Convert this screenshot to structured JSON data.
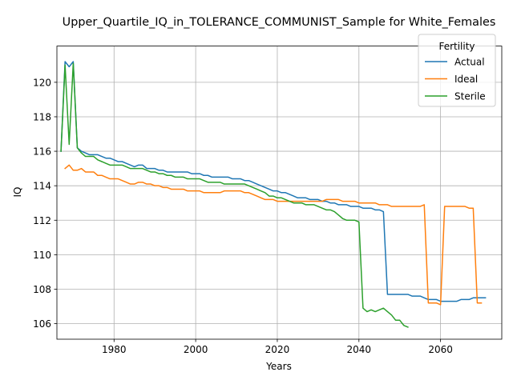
{
  "chart_data": {
    "type": "line",
    "title": "Upper_Quartile_IQ_in_TOLERANCE_COMMUNIST_Sample for White_Females",
    "xlabel": "Years",
    "ylabel": "IQ",
    "xlim": [
      1966,
      2075
    ],
    "ylim": [
      105.1,
      122.1
    ],
    "xticks": [
      1980,
      2000,
      2020,
      2040,
      2060
    ],
    "yticks": [
      106,
      108,
      110,
      112,
      114,
      116,
      118,
      120
    ],
    "grid": true,
    "legend": {
      "title": "Fertility",
      "position": "top-right"
    },
    "series": [
      {
        "name": "Actual",
        "color": "#1f77b4",
        "points": [
          [
            1967,
            116.0
          ],
          [
            1968,
            121.2
          ],
          [
            1969,
            120.9
          ],
          [
            1970,
            121.2
          ],
          [
            1971,
            116.2
          ],
          [
            1972,
            116.0
          ],
          [
            1973,
            115.9
          ],
          [
            1974,
            115.8
          ],
          [
            1975,
            115.8
          ],
          [
            1976,
            115.8
          ],
          [
            1977,
            115.7
          ],
          [
            1978,
            115.6
          ],
          [
            1979,
            115.6
          ],
          [
            1980,
            115.5
          ],
          [
            1981,
            115.4
          ],
          [
            1982,
            115.4
          ],
          [
            1983,
            115.3
          ],
          [
            1984,
            115.2
          ],
          [
            1985,
            115.1
          ],
          [
            1986,
            115.2
          ],
          [
            1987,
            115.2
          ],
          [
            1988,
            115.0
          ],
          [
            1989,
            115.0
          ],
          [
            1990,
            115.0
          ],
          [
            1991,
            114.9
          ],
          [
            1992,
            114.9
          ],
          [
            1993,
            114.8
          ],
          [
            1994,
            114.8
          ],
          [
            1995,
            114.8
          ],
          [
            1996,
            114.8
          ],
          [
            1997,
            114.8
          ],
          [
            1998,
            114.8
          ],
          [
            1999,
            114.7
          ],
          [
            2000,
            114.7
          ],
          [
            2001,
            114.7
          ],
          [
            2002,
            114.6
          ],
          [
            2003,
            114.6
          ],
          [
            2004,
            114.5
          ],
          [
            2005,
            114.5
          ],
          [
            2006,
            114.5
          ],
          [
            2007,
            114.5
          ],
          [
            2008,
            114.5
          ],
          [
            2009,
            114.4
          ],
          [
            2010,
            114.4
          ],
          [
            2011,
            114.4
          ],
          [
            2012,
            114.3
          ],
          [
            2013,
            114.3
          ],
          [
            2014,
            114.2
          ],
          [
            2015,
            114.1
          ],
          [
            2016,
            114.0
          ],
          [
            2017,
            113.9
          ],
          [
            2018,
            113.8
          ],
          [
            2019,
            113.7
          ],
          [
            2020,
            113.7
          ],
          [
            2021,
            113.6
          ],
          [
            2022,
            113.6
          ],
          [
            2023,
            113.5
          ],
          [
            2024,
            113.4
          ],
          [
            2025,
            113.3
          ],
          [
            2026,
            113.3
          ],
          [
            2027,
            113.3
          ],
          [
            2028,
            113.2
          ],
          [
            2029,
            113.2
          ],
          [
            2030,
            113.2
          ],
          [
            2031,
            113.1
          ],
          [
            2032,
            113.1
          ],
          [
            2033,
            113.0
          ],
          [
            2034,
            113.0
          ],
          [
            2035,
            112.9
          ],
          [
            2036,
            112.9
          ],
          [
            2037,
            112.9
          ],
          [
            2038,
            112.8
          ],
          [
            2039,
            112.8
          ],
          [
            2040,
            112.8
          ],
          [
            2041,
            112.7
          ],
          [
            2042,
            112.7
          ],
          [
            2043,
            112.7
          ],
          [
            2044,
            112.6
          ],
          [
            2045,
            112.6
          ],
          [
            2046,
            112.5
          ],
          [
            2047,
            107.7
          ],
          [
            2048,
            107.7
          ],
          [
            2049,
            107.7
          ],
          [
            2050,
            107.7
          ],
          [
            2051,
            107.7
          ],
          [
            2052,
            107.7
          ],
          [
            2053,
            107.6
          ],
          [
            2054,
            107.6
          ],
          [
            2055,
            107.6
          ],
          [
            2056,
            107.5
          ],
          [
            2057,
            107.4
          ],
          [
            2058,
            107.4
          ],
          [
            2059,
            107.4
          ],
          [
            2060,
            107.3
          ],
          [
            2061,
            107.3
          ],
          [
            2062,
            107.3
          ],
          [
            2063,
            107.3
          ],
          [
            2064,
            107.3
          ],
          [
            2065,
            107.4
          ],
          [
            2066,
            107.4
          ],
          [
            2067,
            107.4
          ],
          [
            2068,
            107.5
          ],
          [
            2069,
            107.5
          ],
          [
            2070,
            107.5
          ],
          [
            2071,
            107.5
          ]
        ]
      },
      {
        "name": "Ideal",
        "color": "#ff7f0e",
        "points": [
          [
            1968,
            115.0
          ],
          [
            1969,
            115.2
          ],
          [
            1970,
            114.9
          ],
          [
            1971,
            114.9
          ],
          [
            1972,
            115.0
          ],
          [
            1973,
            114.8
          ],
          [
            1974,
            114.8
          ],
          [
            1975,
            114.8
          ],
          [
            1976,
            114.6
          ],
          [
            1977,
            114.6
          ],
          [
            1978,
            114.5
          ],
          [
            1979,
            114.4
          ],
          [
            1980,
            114.4
          ],
          [
            1981,
            114.4
          ],
          [
            1982,
            114.3
          ],
          [
            1983,
            114.2
          ],
          [
            1984,
            114.1
          ],
          [
            1985,
            114.1
          ],
          [
            1986,
            114.2
          ],
          [
            1987,
            114.2
          ],
          [
            1988,
            114.1
          ],
          [
            1989,
            114.1
          ],
          [
            1990,
            114.0
          ],
          [
            1991,
            114.0
          ],
          [
            1992,
            113.9
          ],
          [
            1993,
            113.9
          ],
          [
            1994,
            113.8
          ],
          [
            1995,
            113.8
          ],
          [
            1996,
            113.8
          ],
          [
            1997,
            113.8
          ],
          [
            1998,
            113.7
          ],
          [
            1999,
            113.7
          ],
          [
            2000,
            113.7
          ],
          [
            2001,
            113.7
          ],
          [
            2002,
            113.6
          ],
          [
            2003,
            113.6
          ],
          [
            2004,
            113.6
          ],
          [
            2005,
            113.6
          ],
          [
            2006,
            113.6
          ],
          [
            2007,
            113.7
          ],
          [
            2008,
            113.7
          ],
          [
            2009,
            113.7
          ],
          [
            2010,
            113.7
          ],
          [
            2011,
            113.7
          ],
          [
            2012,
            113.6
          ],
          [
            2013,
            113.6
          ],
          [
            2014,
            113.5
          ],
          [
            2015,
            113.4
          ],
          [
            2016,
            113.3
          ],
          [
            2017,
            113.2
          ],
          [
            2018,
            113.2
          ],
          [
            2019,
            113.2
          ],
          [
            2020,
            113.1
          ],
          [
            2021,
            113.1
          ],
          [
            2022,
            113.1
          ],
          [
            2023,
            113.1
          ],
          [
            2024,
            113.1
          ],
          [
            2025,
            113.1
          ],
          [
            2026,
            113.1
          ],
          [
            2027,
            113.1
          ],
          [
            2028,
            113.1
          ],
          [
            2029,
            113.1
          ],
          [
            2030,
            113.1
          ],
          [
            2031,
            113.1
          ],
          [
            2032,
            113.2
          ],
          [
            2033,
            113.2
          ],
          [
            2034,
            113.2
          ],
          [
            2035,
            113.2
          ],
          [
            2036,
            113.1
          ],
          [
            2037,
            113.1
          ],
          [
            2038,
            113.1
          ],
          [
            2039,
            113.1
          ],
          [
            2040,
            113.0
          ],
          [
            2041,
            113.0
          ],
          [
            2042,
            113.0
          ],
          [
            2043,
            113.0
          ],
          [
            2044,
            113.0
          ],
          [
            2045,
            112.9
          ],
          [
            2046,
            112.9
          ],
          [
            2047,
            112.9
          ],
          [
            2048,
            112.8
          ],
          [
            2049,
            112.8
          ],
          [
            2050,
            112.8
          ],
          [
            2051,
            112.8
          ],
          [
            2052,
            112.8
          ],
          [
            2053,
            112.8
          ],
          [
            2054,
            112.8
          ],
          [
            2055,
            112.8
          ],
          [
            2056,
            112.9
          ],
          [
            2057,
            107.2
          ],
          [
            2058,
            107.2
          ],
          [
            2059,
            107.2
          ],
          [
            2060,
            107.1
          ],
          [
            2061,
            112.8
          ],
          [
            2062,
            112.8
          ],
          [
            2063,
            112.8
          ],
          [
            2064,
            112.8
          ],
          [
            2065,
            112.8
          ],
          [
            2066,
            112.8
          ],
          [
            2067,
            112.7
          ],
          [
            2068,
            112.7
          ],
          [
            2069,
            107.2
          ],
          [
            2070,
            107.2
          ]
        ]
      },
      {
        "name": "Sterile",
        "color": "#2ca02c",
        "points": [
          [
            1967,
            116.0
          ],
          [
            1968,
            121.0
          ],
          [
            1969,
            116.4
          ],
          [
            1970,
            121.1
          ],
          [
            1971,
            116.2
          ],
          [
            1972,
            115.9
          ],
          [
            1973,
            115.7
          ],
          [
            1974,
            115.7
          ],
          [
            1975,
            115.7
          ],
          [
            1976,
            115.5
          ],
          [
            1977,
            115.4
          ],
          [
            1978,
            115.3
          ],
          [
            1979,
            115.2
          ],
          [
            1980,
            115.2
          ],
          [
            1981,
            115.2
          ],
          [
            1982,
            115.2
          ],
          [
            1983,
            115.1
          ],
          [
            1984,
            115.0
          ],
          [
            1985,
            115.0
          ],
          [
            1986,
            115.0
          ],
          [
            1987,
            115.0
          ],
          [
            1988,
            114.9
          ],
          [
            1989,
            114.8
          ],
          [
            1990,
            114.8
          ],
          [
            1991,
            114.7
          ],
          [
            1992,
            114.7
          ],
          [
            1993,
            114.6
          ],
          [
            1994,
            114.6
          ],
          [
            1995,
            114.5
          ],
          [
            1996,
            114.5
          ],
          [
            1997,
            114.5
          ],
          [
            1998,
            114.4
          ],
          [
            1999,
            114.4
          ],
          [
            2000,
            114.4
          ],
          [
            2001,
            114.4
          ],
          [
            2002,
            114.3
          ],
          [
            2003,
            114.2
          ],
          [
            2004,
            114.2
          ],
          [
            2005,
            114.2
          ],
          [
            2006,
            114.2
          ],
          [
            2007,
            114.1
          ],
          [
            2008,
            114.1
          ],
          [
            2009,
            114.1
          ],
          [
            2010,
            114.1
          ],
          [
            2011,
            114.1
          ],
          [
            2012,
            114.1
          ],
          [
            2013,
            114.0
          ],
          [
            2014,
            113.9
          ],
          [
            2015,
            113.8
          ],
          [
            2016,
            113.7
          ],
          [
            2017,
            113.6
          ],
          [
            2018,
            113.4
          ],
          [
            2019,
            113.4
          ],
          [
            2020,
            113.3
          ],
          [
            2021,
            113.3
          ],
          [
            2022,
            113.2
          ],
          [
            2023,
            113.1
          ],
          [
            2024,
            113.0
          ],
          [
            2025,
            113.0
          ],
          [
            2026,
            113.0
          ],
          [
            2027,
            112.9
          ],
          [
            2028,
            112.9
          ],
          [
            2029,
            112.9
          ],
          [
            2030,
            112.8
          ],
          [
            2031,
            112.7
          ],
          [
            2032,
            112.6
          ],
          [
            2033,
            112.6
          ],
          [
            2034,
            112.5
          ],
          [
            2035,
            112.3
          ],
          [
            2036,
            112.1
          ],
          [
            2037,
            112.0
          ],
          [
            2038,
            112.0
          ],
          [
            2039,
            112.0
          ],
          [
            2040,
            111.9
          ],
          [
            2041,
            106.9
          ],
          [
            2042,
            106.7
          ],
          [
            2043,
            106.8
          ],
          [
            2044,
            106.7
          ],
          [
            2045,
            106.8
          ],
          [
            2046,
            106.9
          ],
          [
            2047,
            106.7
          ],
          [
            2048,
            106.5
          ],
          [
            2049,
            106.2
          ],
          [
            2050,
            106.2
          ],
          [
            2051,
            105.9
          ],
          [
            2052,
            105.8
          ]
        ]
      }
    ]
  }
}
